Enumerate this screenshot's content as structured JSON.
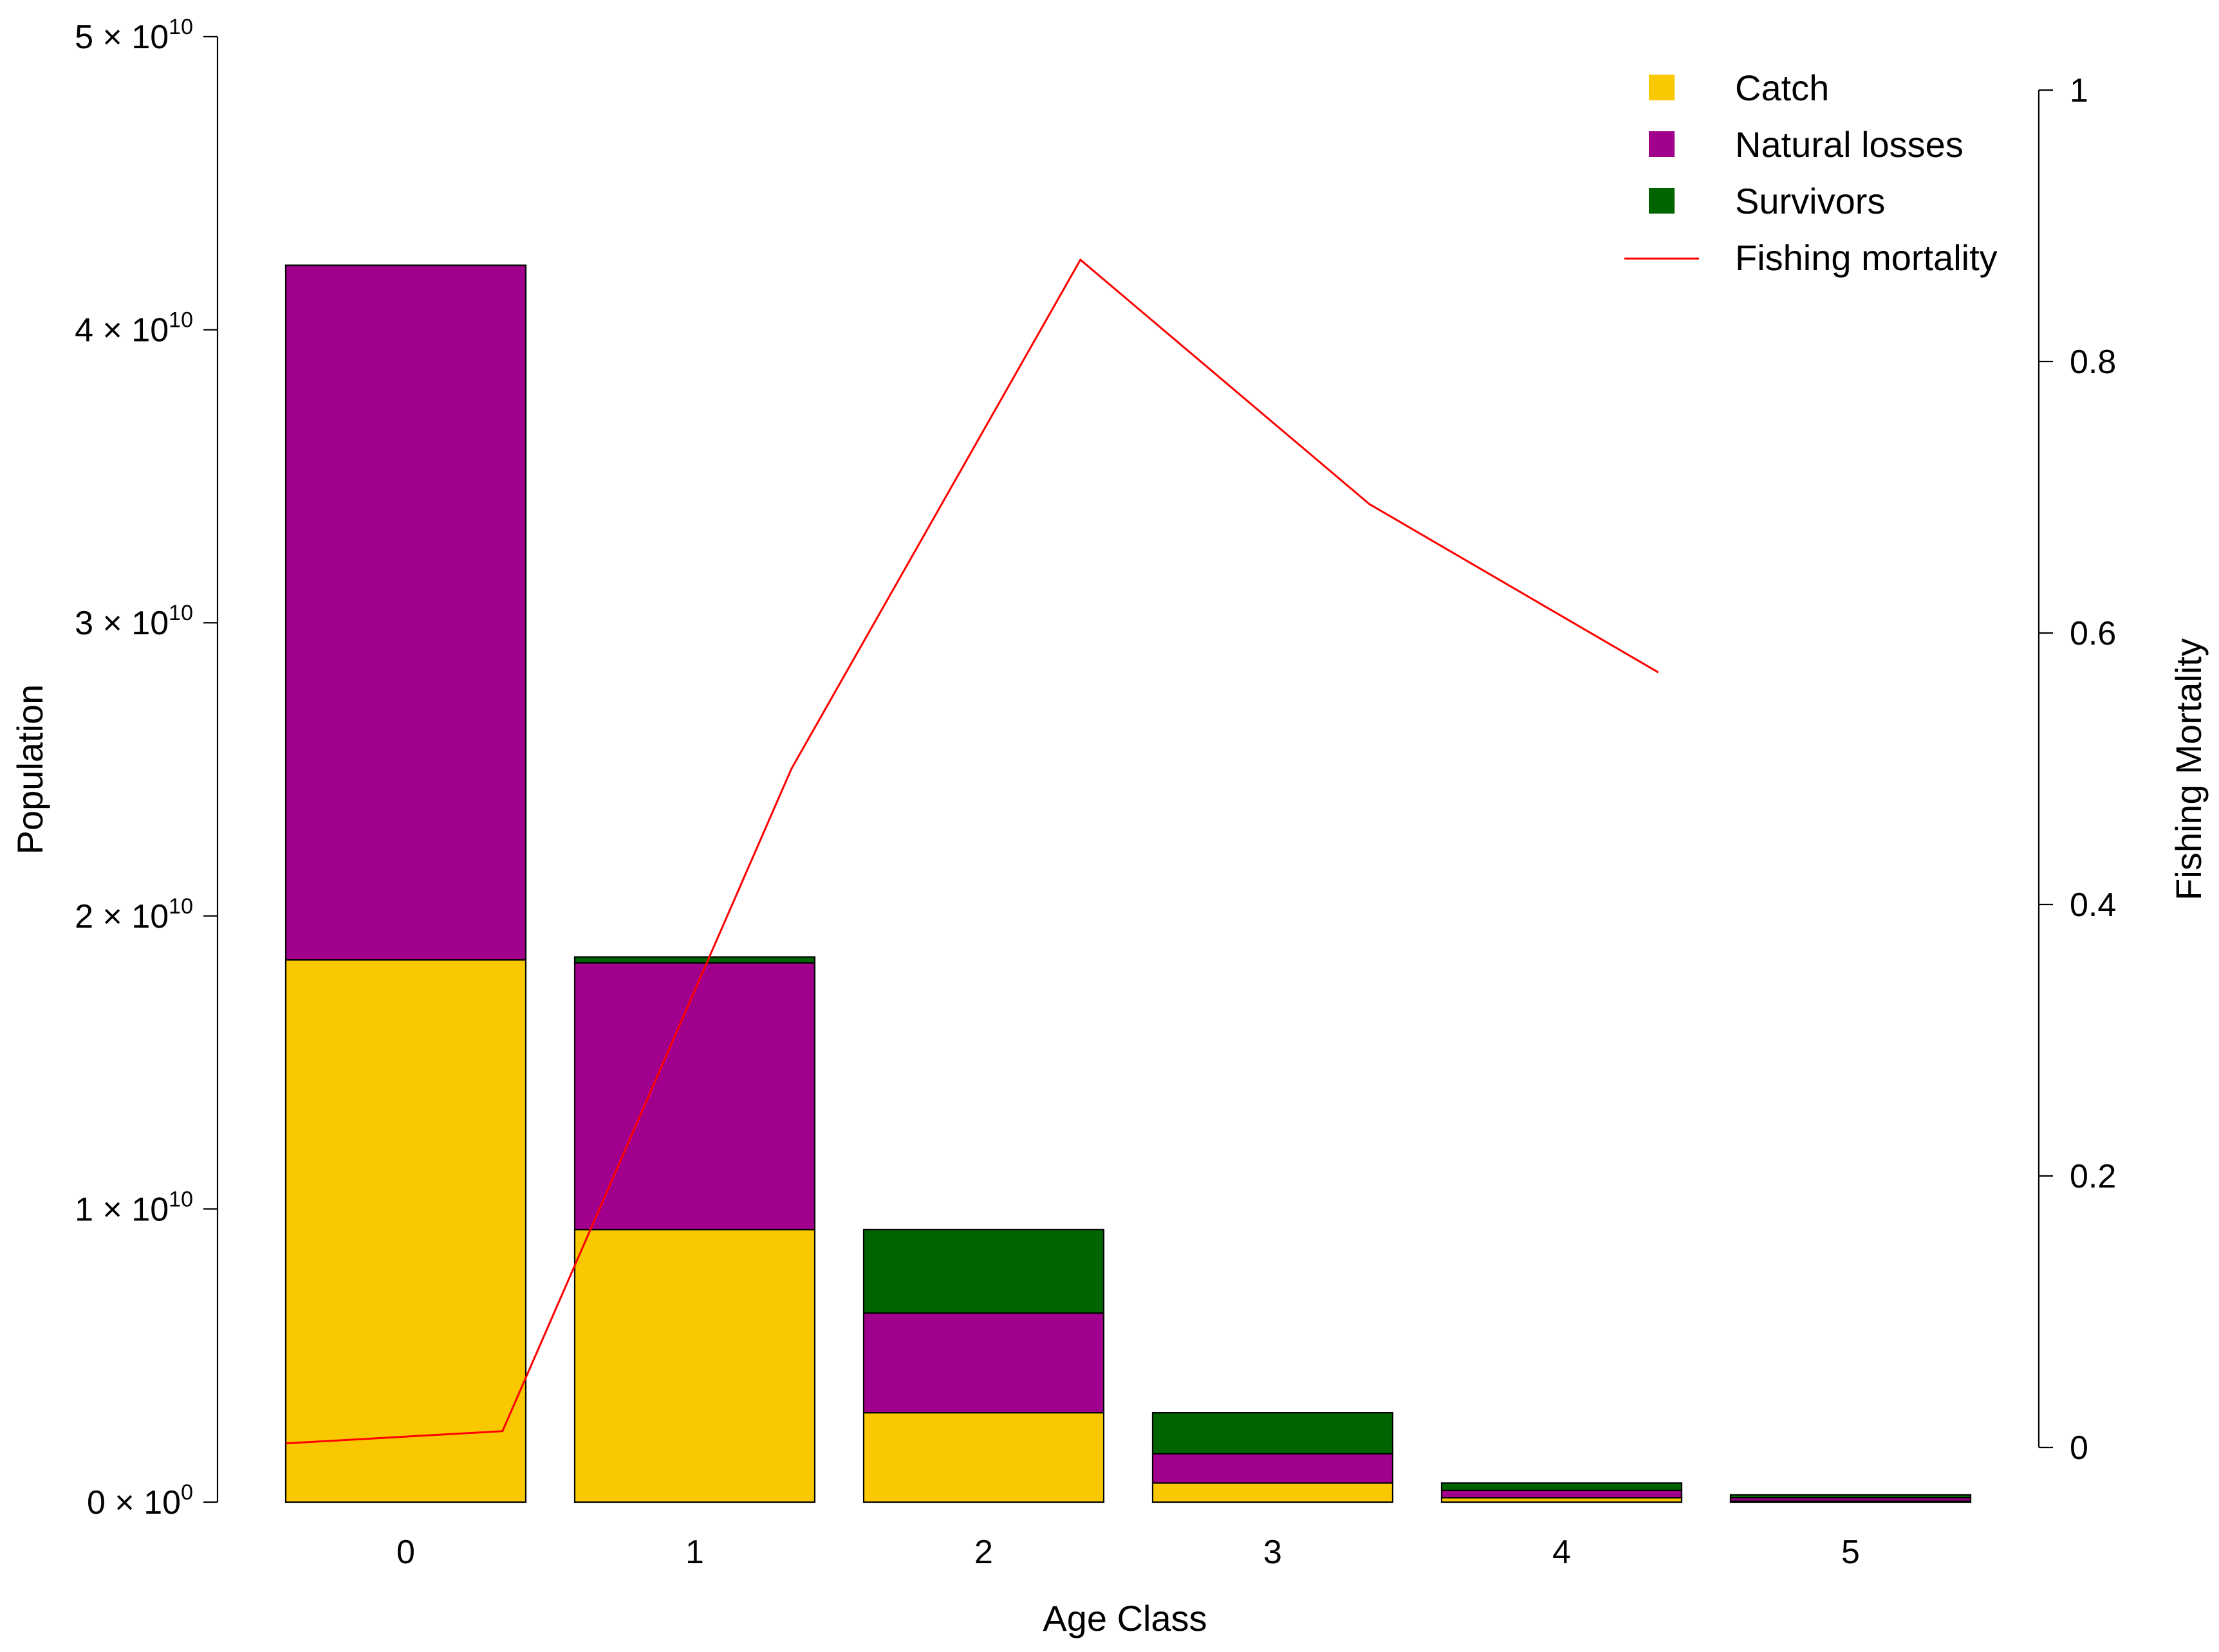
{
  "chart_data": {
    "type": "bar",
    "stacked": true,
    "categories": [
      "0",
      "1",
      "2",
      "3",
      "4",
      "5"
    ],
    "xlabel": "Age Class",
    "ylabel": "Population",
    "ylabel_right": "Fishing Mortality",
    "ylim": [
      0,
      50000000000
    ],
    "y2lim": [
      0,
      1
    ],
    "y_ticks": [
      {
        "value": 0,
        "mantissa": "0",
        "exp": "0"
      },
      {
        "value": 10000000000,
        "mantissa": "1",
        "exp": "10"
      },
      {
        "value": 20000000000,
        "mantissa": "2",
        "exp": "10"
      },
      {
        "value": 30000000000,
        "mantissa": "3",
        "exp": "10"
      },
      {
        "value": 40000000000,
        "mantissa": "4",
        "exp": "10"
      },
      {
        "value": 50000000000,
        "mantissa": "5",
        "exp": "10"
      }
    ],
    "y2_ticks": [
      "0",
      "0.2",
      "0.4",
      "0.6",
      "0.8",
      "1"
    ],
    "times_symbol": "×",
    "series": [
      {
        "name": "Catch",
        "color": "#FAC800",
        "values": [
          18500000000,
          9300000000,
          3050000000,
          650000000,
          150000000,
          30000000
        ]
      },
      {
        "name": "Natural losses",
        "color": "#A0008C",
        "values": [
          23700000000,
          9100000000,
          3400000000,
          1000000000,
          250000000,
          120000000
        ]
      },
      {
        "name": "Survivors",
        "color": "#006400",
        "values": [
          0,
          200000000,
          2850000000,
          1400000000,
          250000000,
          100000000
        ]
      }
    ],
    "line_series": {
      "name": "Fishing mortality",
      "color": "#FF0000",
      "x": [
        0,
        0.75,
        1.75,
        2.75,
        3.75,
        4.75
      ],
      "values": [
        0.003,
        0.012,
        0.5,
        0.875,
        0.695,
        0.571
      ]
    },
    "legend": {
      "position": "top-right",
      "items": [
        {
          "label": "Catch",
          "kind": "box",
          "color": "#FAC800"
        },
        {
          "label": "Natural losses",
          "kind": "box",
          "color": "#A0008C"
        },
        {
          "label": "Survivors",
          "kind": "box",
          "color": "#006400"
        },
        {
          "label": "Fishing mortality",
          "kind": "line",
          "color": "#FF0000"
        }
      ]
    }
  }
}
